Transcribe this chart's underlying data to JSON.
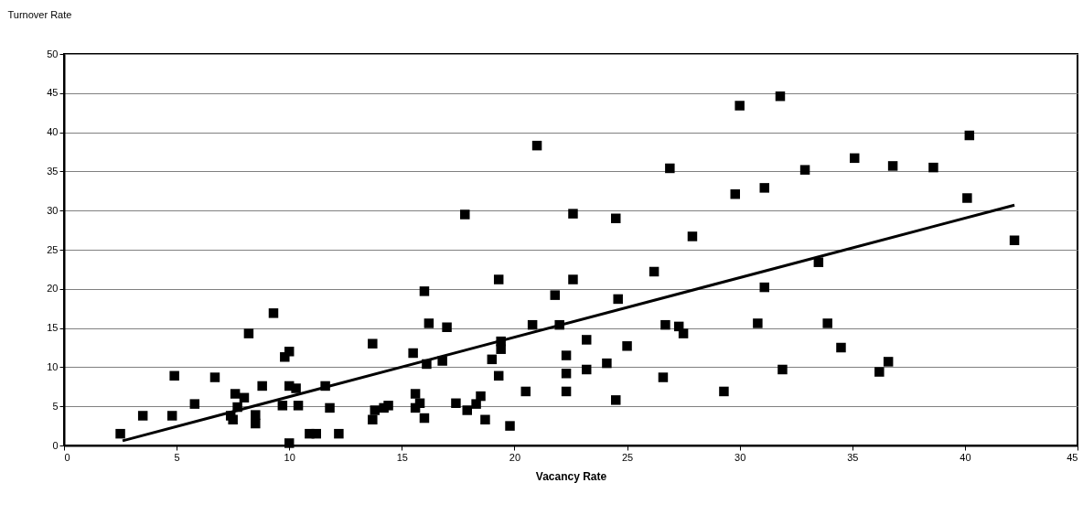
{
  "chart_data": {
    "type": "scatter",
    "xlabel": "Vacancy Rate",
    "ylabel": "Turnover Rate",
    "xlim": [
      0,
      45
    ],
    "xticks": [
      0,
      5,
      10,
      15,
      20,
      25,
      30,
      35,
      40,
      45
    ],
    "ylim": [
      0,
      50
    ],
    "yticks": [
      0,
      5,
      10,
      15,
      20,
      25,
      30,
      35,
      40,
      45,
      50
    ],
    "grid": "y",
    "series": [
      {
        "marker": "square",
        "color": "#000000",
        "x": [
          2.5,
          3.5,
          4.8,
          4.9,
          5.8,
          6.7,
          7.4,
          7.5,
          7.6,
          7.7,
          8.0,
          8.2,
          8.5,
          8.5,
          8.8,
          9.3,
          9.7,
          9.8,
          10.0,
          10.0,
          10.0,
          10.3,
          10.4,
          10.9,
          11.2,
          11.6,
          11.8,
          12.2,
          13.7,
          13.7,
          13.8,
          14.2,
          14.4,
          15.5,
          15.6,
          15.6,
          15.8,
          16.0,
          16.0,
          16.1,
          16.2,
          16.8,
          17.0,
          17.4,
          17.8,
          17.9,
          18.3,
          18.5,
          18.7,
          19.0,
          19.3,
          19.3,
          19.4,
          19.4,
          19.8,
          20.5,
          20.8,
          21.0,
          21.8,
          22.0,
          22.3,
          22.3,
          22.3,
          22.6,
          22.6,
          23.2,
          23.2,
          24.1,
          24.5,
          24.5,
          24.6,
          25.0,
          26.2,
          26.6,
          26.7,
          26.9,
          27.3,
          27.5,
          27.9,
          29.3,
          29.8,
          30.0,
          30.8,
          31.1,
          31.1,
          31.8,
          31.9,
          32.9,
          33.5,
          33.9,
          34.5,
          35.1,
          36.2,
          36.6,
          36.8,
          38.6,
          40.1,
          40.2,
          42.2
        ],
        "values": [
          1.5,
          3.8,
          3.8,
          8.9,
          5.3,
          8.7,
          3.8,
          3.3,
          6.6,
          4.9,
          6.1,
          14.3,
          3.9,
          2.8,
          7.6,
          16.9,
          5.1,
          11.3,
          7.6,
          12.0,
          0.3,
          7.3,
          5.1,
          1.5,
          1.5,
          7.6,
          4.8,
          1.5,
          13.0,
          3.3,
          4.5,
          4.8,
          5.1,
          11.8,
          4.8,
          6.6,
          5.4,
          3.5,
          19.7,
          10.4,
          15.6,
          10.8,
          15.1,
          5.4,
          29.5,
          4.5,
          5.3,
          6.3,
          3.3,
          11.0,
          21.2,
          8.9,
          12.3,
          13.3,
          2.5,
          6.9,
          15.4,
          38.3,
          19.2,
          15.4,
          11.5,
          6.9,
          9.2,
          29.6,
          21.2,
          13.5,
          9.7,
          10.5,
          29.0,
          5.8,
          18.7,
          12.7,
          22.2,
          8.7,
          15.4,
          35.4,
          15.2,
          14.3,
          26.7,
          6.9,
          32.1,
          43.4,
          15.6,
          20.2,
          32.9,
          44.6,
          9.7,
          35.2,
          23.4,
          15.6,
          12.5,
          36.7,
          9.4,
          10.7,
          35.7,
          35.5,
          31.6,
          39.6,
          26.2
        ]
      },
      {
        "type": "line",
        "color": "#000000",
        "x": [
          2.6,
          42.2
        ],
        "values": [
          0.6,
          30.7
        ]
      }
    ]
  }
}
